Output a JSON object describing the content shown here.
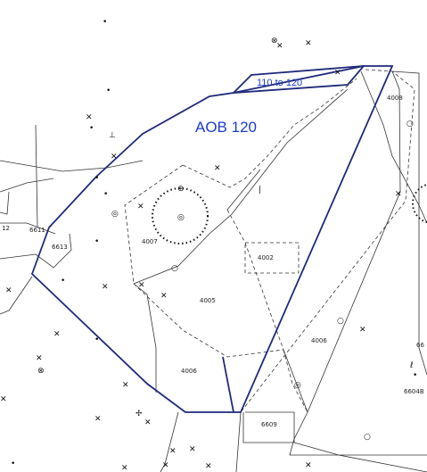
{
  "colors": {
    "aob_outline": "#1f2a7a",
    "aob_label": "#1a3ccc",
    "linework": "#222222",
    "background": "#ffffff"
  },
  "map": {
    "aob_label": "AOB 120",
    "band_label": "110 to 120",
    "parcels": [
      "12",
      "6611",
      "6613",
      "4007",
      "4002",
      "4005",
      "4006",
      "4006",
      "4008",
      "6609",
      "6604B",
      "66"
    ]
  }
}
